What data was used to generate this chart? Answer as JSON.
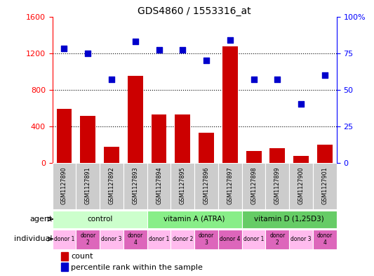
{
  "title": "GDS4860 / 1553316_at",
  "samples": [
    "GSM1127890",
    "GSM1127891",
    "GSM1127892",
    "GSM1127893",
    "GSM1127894",
    "GSM1127895",
    "GSM1127896",
    "GSM1127897",
    "GSM1127898",
    "GSM1127899",
    "GSM1127900",
    "GSM1127901"
  ],
  "counts": [
    590,
    510,
    175,
    950,
    530,
    530,
    330,
    1270,
    130,
    155,
    75,
    200
  ],
  "percentiles": [
    78,
    75,
    57,
    83,
    77,
    77,
    70,
    84,
    57,
    57,
    40,
    60
  ],
  "ylim_left": [
    0,
    1600
  ],
  "ylim_right": [
    0,
    100
  ],
  "yticks_left": [
    0,
    400,
    800,
    1200,
    1600
  ],
  "ytick_labels_right": [
    "0",
    "25",
    "50",
    "75",
    "100%"
  ],
  "yticks_right": [
    0,
    25,
    50,
    75,
    100
  ],
  "bar_color": "#cc0000",
  "dot_color": "#0000cc",
  "agents": [
    {
      "label": "control",
      "start": 0,
      "end": 4
    },
    {
      "label": "vitamin A (ATRA)",
      "start": 4,
      "end": 8
    },
    {
      "label": "vitamin D (1,25D3)",
      "start": 8,
      "end": 12
    }
  ],
  "agent_colors": [
    "#ccffcc",
    "#88ee88",
    "#66cc66"
  ],
  "individuals": [
    {
      "label": "donor 1",
      "col": 0
    },
    {
      "label": "donor\n2",
      "col": 1
    },
    {
      "label": "donor 3",
      "col": 2
    },
    {
      "label": "donor\n4",
      "col": 3
    },
    {
      "label": "donor 1",
      "col": 4
    },
    {
      "label": "donor 2",
      "col": 5
    },
    {
      "label": "donor\n3",
      "col": 6
    },
    {
      "label": "donor 4",
      "col": 7
    },
    {
      "label": "donor 1",
      "col": 8
    },
    {
      "label": "donor\n2",
      "col": 9
    },
    {
      "label": "donor 3",
      "col": 10
    },
    {
      "label": "donor\n4",
      "col": 11
    }
  ],
  "ind_colors": [
    "#ffbbee",
    "#dd66bb",
    "#ffbbee",
    "#dd66bb",
    "#ffbbee",
    "#ffbbee",
    "#dd66bb",
    "#dd66bb",
    "#ffbbee",
    "#dd66bb",
    "#ffbbee",
    "#dd66bb"
  ],
  "sample_bg_color": "#cccccc",
  "bg_color": "#ffffff"
}
